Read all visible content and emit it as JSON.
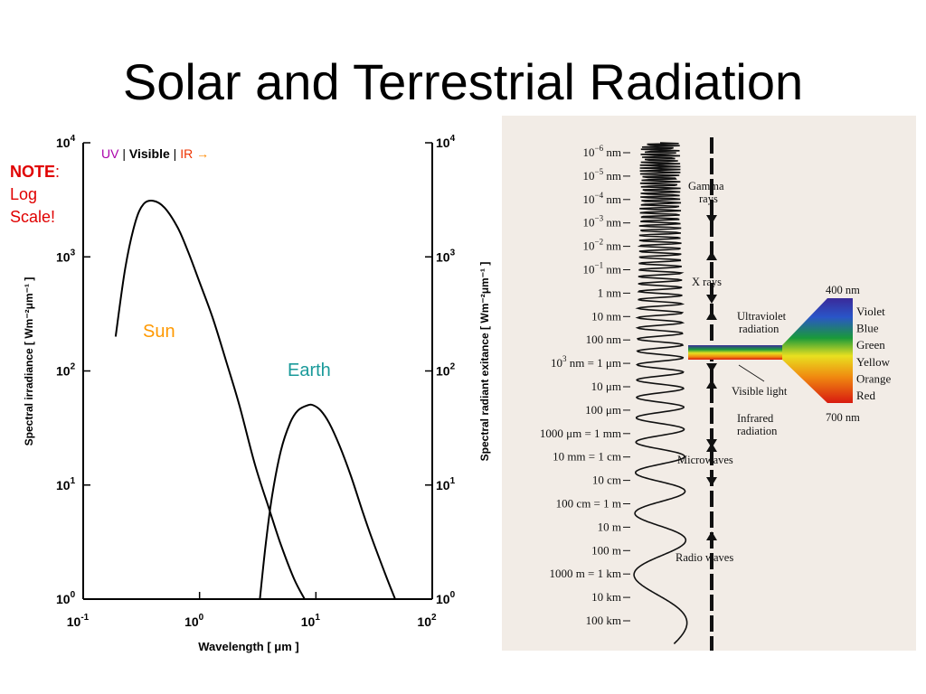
{
  "slide": {
    "title": "Solar and Terrestrial Radiation",
    "note_bold": "NOTE",
    "note_colon": ":",
    "note_line2": "Log",
    "note_line3": "Scale!"
  },
  "legend": {
    "uv": "UV",
    "sep": "|",
    "visible": "Visible",
    "ir": "IR",
    "arrow": "→",
    "colors": {
      "uv": "#aa00aa",
      "visible": "#000000",
      "ir": "#ee3300",
      "arrow": "#ff8800"
    }
  },
  "curve_labels": {
    "sun": "Sun",
    "earth": "Earth",
    "sun_color": "#ff9900",
    "earth_color": "#1a9a9a"
  },
  "chart_data": {
    "type": "line",
    "xscale": "log",
    "yscale": "log",
    "xlim": [
      0.1,
      100
    ],
    "ylim": [
      1,
      10000
    ],
    "xlabel": "Wavelength [ μm ]",
    "ylabel_left": "Spectral irradiance [ Wm⁻²μm⁻¹ ]",
    "ylabel_right": "Spectral radiant exitance [ Wm⁻²μm⁻¹ ]",
    "x_ticks": [
      {
        "value": 0.1,
        "base": "10",
        "exp": "-1"
      },
      {
        "value": 1,
        "base": "10",
        "exp": "0"
      },
      {
        "value": 10,
        "base": "10",
        "exp": "1"
      },
      {
        "value": 100,
        "base": "10",
        "exp": "2"
      }
    ],
    "y_ticks": [
      {
        "value": 1,
        "base": "10",
        "exp": "0"
      },
      {
        "value": 10,
        "base": "10",
        "exp": "1"
      },
      {
        "value": 100,
        "base": "10",
        "exp": "2"
      },
      {
        "value": 1000,
        "base": "10",
        "exp": "3"
      },
      {
        "value": 10000,
        "base": "10",
        "exp": "4"
      }
    ],
    "grid": false,
    "series": [
      {
        "name": "Sun",
        "x": [
          0.19,
          0.23,
          0.28,
          0.33,
          0.4,
          0.5,
          0.65,
          0.8,
          1.0,
          1.3,
          1.7,
          2.2,
          3.0,
          4.0,
          5.0,
          6.5,
          8.0
        ],
        "y": [
          200,
          800,
          2000,
          2900,
          3100,
          2700,
          1800,
          1100,
          600,
          290,
          120,
          50,
          15,
          6,
          3,
          1.5,
          1
        ]
      },
      {
        "name": "Earth",
        "x": [
          3.3,
          3.7,
          4.2,
          5.0,
          6.0,
          7.0,
          8.5,
          9.5,
          11,
          13,
          16,
          20,
          25,
          30,
          40,
          48
        ],
        "y": [
          1,
          3,
          8,
          20,
          35,
          45,
          50,
          50,
          45,
          35,
          22,
          12,
          6,
          3.5,
          1.6,
          1
        ]
      }
    ]
  },
  "spectrum": {
    "wavelength_labels": [
      {
        "pre": "10",
        "sup": "−6",
        "post": " nm"
      },
      {
        "pre": "10",
        "sup": "−5",
        "post": " nm"
      },
      {
        "pre": "10",
        "sup": "−4",
        "post": " nm"
      },
      {
        "pre": "10",
        "sup": "−3",
        "post": " nm"
      },
      {
        "pre": "10",
        "sup": "−2",
        "post": " nm"
      },
      {
        "pre": "10",
        "sup": "−1",
        "post": " nm"
      },
      {
        "pre": "1 nm",
        "sup": "",
        "post": ""
      },
      {
        "pre": "10 nm",
        "sup": "",
        "post": ""
      },
      {
        "pre": "100 nm",
        "sup": "",
        "post": ""
      },
      {
        "pre": "10",
        "sup": "3",
        "post": " nm = 1 μm"
      },
      {
        "pre": "10 μm",
        "sup": "",
        "post": ""
      },
      {
        "pre": "100 μm",
        "sup": "",
        "post": ""
      },
      {
        "pre": "1000 μm = 1 mm",
        "sup": "",
        "post": ""
      },
      {
        "pre": "10 mm = 1 cm",
        "sup": "",
        "post": ""
      },
      {
        "pre": "10 cm",
        "sup": "",
        "post": ""
      },
      {
        "pre": "100 cm = 1 m",
        "sup": "",
        "post": ""
      },
      {
        "pre": "10 m",
        "sup": "",
        "post": ""
      },
      {
        "pre": "100 m",
        "sup": "",
        "post": ""
      },
      {
        "pre": "1000 m = 1 km",
        "sup": "",
        "post": ""
      },
      {
        "pre": "10 km",
        "sup": "",
        "post": ""
      },
      {
        "pre": "100 km",
        "sup": "",
        "post": ""
      }
    ],
    "regions": {
      "gamma": "Gamma",
      "gamma2": "rays",
      "xrays": "X rays",
      "uv": "Ultraviolet",
      "uv2": "radiation",
      "visible": "Visible light",
      "infrared": "Infrared",
      "infrared2": "radiation",
      "microwaves": "Microwaves",
      "radio": "Radio waves"
    },
    "prism": {
      "top": "400 nm",
      "bottom": "700 nm",
      "colors": [
        "Violet",
        "Blue",
        "Green",
        "Yellow",
        "Orange",
        "Red"
      ]
    }
  }
}
